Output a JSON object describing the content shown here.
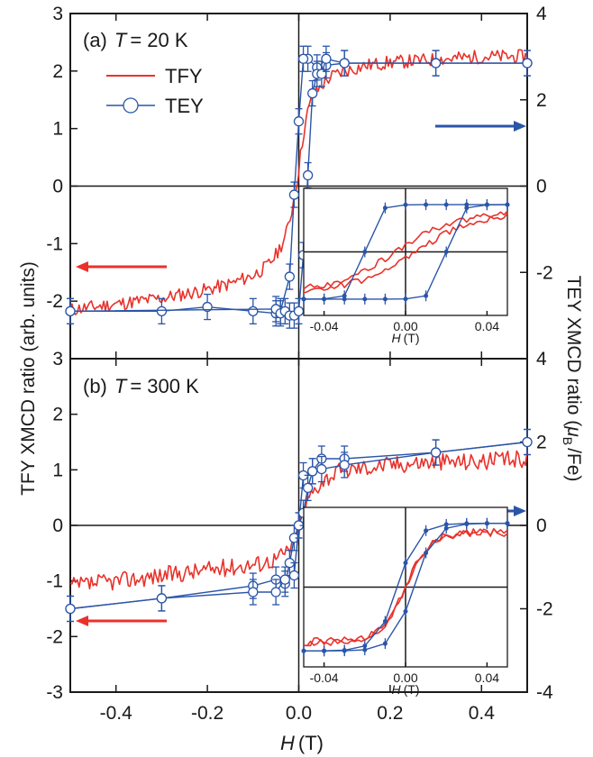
{
  "chart_data": [
    {
      "type": "line",
      "panel_label": "(a)",
      "temperature_symbol": "T",
      "temperature_value": "= 20 K",
      "xlim": [
        -0.5,
        0.5
      ],
      "ylim_left": [
        -3,
        3
      ],
      "ylim_right": [
        -4,
        4
      ],
      "x_ticks": [
        "-0.4",
        "-0.2",
        "0.0",
        "0.2",
        "0.4"
      ],
      "y_ticks_left": [
        "3",
        "2",
        "1",
        "0",
        "-1",
        "-2"
      ],
      "y_ticks_right": [
        "4",
        "2",
        "0",
        "-2"
      ],
      "legend": [
        "TFY",
        "TEY"
      ],
      "series": [
        {
          "name": "TFY",
          "color": "#e8322b",
          "axis": "left",
          "x": [
            -0.5,
            -0.4,
            -0.3,
            -0.2,
            -0.15,
            -0.1,
            -0.07,
            -0.05,
            -0.03,
            -0.02,
            -0.01,
            0.0,
            0.01,
            0.02,
            0.03,
            0.05,
            0.07,
            0.1,
            0.15,
            0.2,
            0.3,
            0.4,
            0.5
          ],
          "y": [
            -2.15,
            -2.05,
            -1.95,
            -1.8,
            -1.7,
            -1.55,
            -1.4,
            -1.2,
            -0.9,
            -0.6,
            -0.2,
            0.3,
            0.9,
            1.3,
            1.55,
            1.75,
            1.9,
            2.0,
            2.1,
            2.15,
            2.2,
            2.25,
            2.25
          ]
        },
        {
          "name": "TEY",
          "color": "#2a55a8",
          "axis": "right",
          "sweep_down": {
            "x": [
              0.5,
              0.3,
              0.1,
              0.06,
              0.04,
              0.02,
              0.01,
              0.0,
              -0.01,
              -0.02,
              -0.04,
              -0.05,
              -0.1,
              -0.2,
              -0.3,
              -0.5
            ],
            "y": [
              2.85,
              2.85,
              2.85,
              2.8,
              2.75,
              2.95,
              2.95,
              1.5,
              -0.2,
              -2.1,
              -2.9,
              -2.95,
              -2.9,
              -2.8,
              -2.9,
              -2.9
            ]
          },
          "sweep_up": {
            "x": [
              -0.5,
              -0.05,
              -0.04,
              -0.03,
              -0.02,
              -0.01,
              0.0,
              0.01,
              0.02,
              0.03,
              0.04,
              0.05,
              0.06,
              0.1,
              0.3,
              0.5
            ],
            "y": [
              -2.9,
              -2.85,
              -2.95,
              -2.9,
              -3.0,
              -3.0,
              -2.9,
              -1.6,
              0.25,
              2.15,
              2.6,
              2.6,
              2.95,
              2.85,
              2.85,
              2.85
            ]
          }
        }
      ],
      "inset": {
        "xlim": [
          -0.05,
          0.05
        ],
        "x_ticks": [
          "-0.04",
          "0.00",
          "0.04"
        ],
        "xlabel_symbol": "H",
        "xlabel_unit": "(T)"
      }
    },
    {
      "type": "line",
      "panel_label": "(b)",
      "temperature_symbol": "T",
      "temperature_value": "= 300 K",
      "xlim": [
        -0.5,
        0.5
      ],
      "ylim_left": [
        -3,
        3
      ],
      "ylim_right": [
        -4,
        4
      ],
      "x_ticks": [
        "-0.4",
        "-0.2",
        "0.0",
        "0.2",
        "0.4"
      ],
      "y_ticks_left": [
        "3",
        "2",
        "1",
        "0",
        "-1",
        "-2",
        "-3"
      ],
      "y_ticks_right": [
        "4",
        "2",
        "0",
        "-2",
        "-4"
      ],
      "series": [
        {
          "name": "TFY",
          "color": "#e8322b",
          "axis": "left",
          "x": [
            -0.5,
            -0.4,
            -0.3,
            -0.2,
            -0.1,
            -0.07,
            -0.05,
            -0.03,
            -0.01,
            0.0,
            0.01,
            0.03,
            0.05,
            0.07,
            0.1,
            0.2,
            0.3,
            0.4,
            0.5
          ],
          "y": [
            -1.1,
            -1.0,
            -0.9,
            -0.8,
            -0.7,
            -0.65,
            -0.6,
            -0.5,
            -0.3,
            -0.1,
            0.3,
            0.6,
            0.8,
            0.9,
            1.0,
            1.1,
            1.15,
            1.15,
            1.2
          ]
        },
        {
          "name": "TEY",
          "color": "#2a55a8",
          "axis": "right",
          "sweep_down": {
            "x": [
              0.5,
              0.3,
              0.1,
              0.05,
              0.03,
              0.01,
              0.0,
              -0.01,
              -0.02,
              -0.03,
              -0.05,
              -0.1,
              -0.3,
              -0.5
            ],
            "y": [
              2.0,
              1.75,
              1.6,
              1.6,
              1.3,
              1.2,
              0.0,
              -0.3,
              -0.9,
              -1.4,
              -1.3,
              -1.45,
              -1.75,
              -2.0
            ]
          },
          "sweep_up": {
            "x": [
              -0.5,
              -0.3,
              -0.1,
              -0.05,
              -0.03,
              -0.01,
              0.0,
              0.01,
              0.02,
              0.03,
              0.05,
              0.1,
              0.3,
              0.5
            ],
            "y": [
              -2.0,
              -1.75,
              -1.6,
              -1.6,
              -1.3,
              -1.2,
              0.0,
              0.3,
              0.9,
              1.3,
              1.35,
              1.45,
              1.75,
              2.0
            ]
          }
        }
      ],
      "inset": {
        "xlim": [
          -0.05,
          0.05
        ],
        "x_ticks": [
          "-0.04",
          "0.00",
          "0.04"
        ],
        "xlabel_symbol": "H",
        "xlabel_unit": "(T)"
      }
    }
  ],
  "xlabel_symbol": "H",
  "xlabel_unit": "(T)",
  "ylabel_left": "TFY XMCD ratio (arb. units)",
  "ylabel_right_prefix": "TEY XMCD ratio (",
  "ylabel_right_mu": "μ",
  "ylabel_right_sub": "B",
  "ylabel_right_suffix": "/Fe)"
}
